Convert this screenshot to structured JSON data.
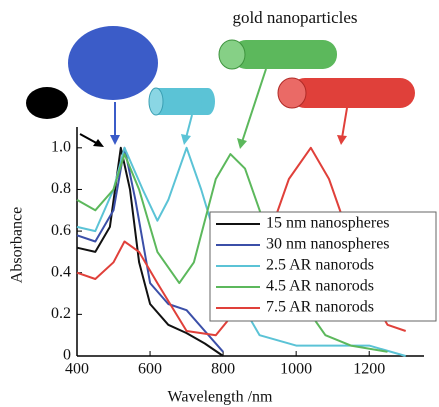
{
  "chart_data": {
    "type": "line",
    "title": "gold nanoparticles",
    "xlabel": "Wavelength /nm",
    "ylabel": "Absorbance",
    "xlim": [
      400,
      1350
    ],
    "ylim": [
      0,
      1.1
    ],
    "xticks": [
      400,
      600,
      800,
      1000,
      1200
    ],
    "yticks": [
      0,
      0.2,
      0.4,
      0.6,
      0.8,
      {
        "value": 1,
        "label": "1.0"
      }
    ],
    "legend": "lower-right",
    "series": [
      {
        "name": "15 nm nanospheres",
        "color": "#111111",
        "x": [
          400,
          450,
          490,
          520,
          545,
          570,
          600,
          650,
          700,
          750,
          800
        ],
        "values": [
          0.52,
          0.5,
          0.62,
          1.0,
          0.8,
          0.45,
          0.25,
          0.15,
          0.11,
          0.06,
          0
        ]
      },
      {
        "name": "30 nm nanospheres",
        "color": "#3b4fa8",
        "x": [
          400,
          450,
          500,
          530,
          560,
          600,
          650,
          700,
          750,
          800
        ],
        "values": [
          0.58,
          0.55,
          0.7,
          1.0,
          0.75,
          0.35,
          0.25,
          0.22,
          0.12,
          0.02
        ]
      },
      {
        "name": "2.5 AR nanorods",
        "color": "#5bc3d6",
        "x": [
          400,
          450,
          500,
          530,
          580,
          620,
          650,
          700,
          740,
          800,
          850,
          900,
          1000,
          1100,
          1200,
          1300
        ],
        "values": [
          0.62,
          0.6,
          0.8,
          1.0,
          0.8,
          0.65,
          0.75,
          1.0,
          0.8,
          0.45,
          0.25,
          0.1,
          0.05,
          0.05,
          0.05,
          0
        ]
      },
      {
        "name": "4.5 AR nanorods",
        "color": "#5cb85c",
        "x": [
          400,
          450,
          500,
          530,
          570,
          620,
          680,
          720,
          780,
          820,
          860,
          920,
          1000,
          1080,
          1150,
          1250
        ],
        "values": [
          0.75,
          0.7,
          0.8,
          0.97,
          0.8,
          0.5,
          0.35,
          0.45,
          0.85,
          0.97,
          0.9,
          0.6,
          0.3,
          0.1,
          0.05,
          0.02
        ]
      },
      {
        "name": "7.5 AR nanorods",
        "color": "#e0403a",
        "x": [
          400,
          450,
          500,
          530,
          570,
          620,
          700,
          780,
          850,
          920,
          980,
          1040,
          1090,
          1150,
          1200,
          1250,
          1300
        ],
        "values": [
          0.4,
          0.37,
          0.45,
          0.55,
          0.5,
          0.35,
          0.12,
          0.1,
          0.25,
          0.55,
          0.85,
          1.0,
          0.85,
          0.55,
          0.3,
          0.15,
          0.12
        ]
      }
    ]
  }
}
